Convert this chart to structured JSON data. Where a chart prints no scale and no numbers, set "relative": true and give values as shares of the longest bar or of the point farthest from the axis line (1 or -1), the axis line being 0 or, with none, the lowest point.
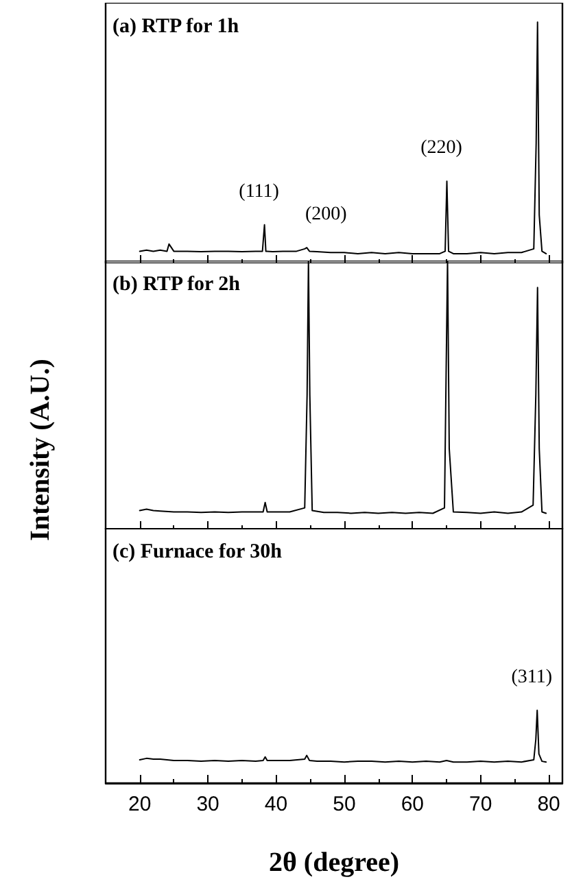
{
  "chart_data": [
    {
      "type": "line",
      "title": "(a) RTP for 1h",
      "relative": true,
      "tick_labels": false,
      "xlim": [
        15,
        82
      ],
      "xticks": [
        20,
        30,
        40,
        50,
        60,
        70,
        80
      ],
      "grid": false,
      "marker": "none",
      "line_style": "solid",
      "annotations": [
        {
          "text": "(111)",
          "x": 38.3,
          "y": 0.16
        },
        {
          "text": "(200)",
          "x": 44.5,
          "y": 0.065
        },
        {
          "text": "(220)",
          "x": 65.05,
          "y": 0.34
        }
      ],
      "series": [
        {
          "color": "#000000",
          "x": [
            20,
            21,
            22,
            23,
            24,
            24.3,
            25,
            27,
            29,
            31,
            33,
            35,
            37,
            38.0,
            38.3,
            38.5,
            38.7,
            39.5,
            41,
            43,
            44.2,
            44.5,
            44.9,
            46,
            48,
            50,
            52,
            54,
            56,
            58,
            60,
            62,
            64,
            64.8,
            65.05,
            65.3,
            66,
            68,
            70,
            72,
            74,
            76,
            77.8,
            78.15,
            78.35,
            78.6,
            79,
            79.6
          ],
          "values": [
            0.05,
            0.055,
            0.05,
            0.055,
            0.05,
            0.08,
            0.05,
            0.05,
            0.048,
            0.05,
            0.05,
            0.048,
            0.05,
            0.05,
            0.16,
            0.05,
            0.05,
            0.048,
            0.05,
            0.05,
            0.06,
            0.065,
            0.05,
            0.048,
            0.045,
            0.045,
            0.04,
            0.045,
            0.04,
            0.045,
            0.04,
            0.04,
            0.04,
            0.05,
            0.34,
            0.05,
            0.04,
            0.04,
            0.045,
            0.04,
            0.045,
            0.045,
            0.06,
            0.5,
            1,
            0.2,
            0.05,
            0.04
          ]
        }
      ]
    },
    {
      "type": "line",
      "title": "(b) RTP for 2h",
      "ylabel": "Intensity (A.U.)",
      "relative": true,
      "tick_labels": false,
      "xlim": [
        15,
        82
      ],
      "xticks": [
        20,
        30,
        40,
        50,
        60,
        70,
        80
      ],
      "grid": false,
      "marker": "none",
      "line_style": "solid",
      "series": [
        {
          "color": "#000000",
          "x": [
            20,
            21,
            22,
            23,
            25,
            27,
            29,
            31,
            33,
            35,
            37,
            38.1,
            38.4,
            38.7,
            40,
            42,
            44.2,
            44.55,
            44.75,
            44.95,
            45.3,
            47,
            49,
            51,
            53,
            55,
            57,
            59,
            61,
            63,
            64.7,
            64.95,
            65.15,
            65.4,
            66,
            68,
            70,
            72,
            74,
            76,
            77.7,
            78.1,
            78.35,
            78.6,
            79,
            79.6
          ],
          "values": [
            0.07,
            0.075,
            0.07,
            0.068,
            0.065,
            0.065,
            0.063,
            0.065,
            0.063,
            0.065,
            0.065,
            0.065,
            0.1,
            0.065,
            0.065,
            0.065,
            0.08,
            0.5,
            1,
            0.5,
            0.07,
            0.063,
            0.063,
            0.06,
            0.063,
            0.06,
            0.063,
            0.06,
            0.063,
            0.06,
            0.08,
            0.6,
            1,
            0.3,
            0.065,
            0.063,
            0.06,
            0.065,
            0.06,
            0.065,
            0.09,
            0.5,
            0.9,
            0.3,
            0.065,
            0.06
          ]
        }
      ]
    },
    {
      "type": "line",
      "title": "(c) Furnace for 30h",
      "xlabel": "2θ (degree)",
      "relative": true,
      "tick_labels": "x",
      "xlim": [
        15,
        82
      ],
      "xticks": [
        20,
        30,
        40,
        50,
        60,
        70,
        80
      ],
      "grid": false,
      "marker": "none",
      "line_style": "solid",
      "annotations": [
        {
          "text": "(311)",
          "x": 78.3,
          "y": 1
        }
      ],
      "series": [
        {
          "color": "#000000",
          "x": [
            20,
            21,
            22,
            23,
            25,
            27,
            29,
            31,
            33,
            35,
            37,
            38.1,
            38.4,
            38.7,
            40,
            42,
            44.2,
            44.5,
            44.9,
            46,
            48,
            50,
            52,
            54,
            56,
            58,
            60,
            62,
            64,
            65,
            66,
            68,
            70,
            72,
            74,
            76,
            77.8,
            78.1,
            78.3,
            78.55,
            79,
            79.6
          ],
          "values": [
            0.32,
            0.34,
            0.33,
            0.33,
            0.31,
            0.31,
            0.3,
            0.31,
            0.3,
            0.31,
            0.3,
            0.31,
            0.36,
            0.31,
            0.31,
            0.31,
            0.33,
            0.38,
            0.31,
            0.3,
            0.3,
            0.29,
            0.3,
            0.3,
            0.29,
            0.3,
            0.29,
            0.3,
            0.29,
            0.31,
            0.29,
            0.29,
            0.3,
            0.29,
            0.3,
            0.29,
            0.32,
            0.6,
            1,
            0.4,
            0.3,
            0.29
          ]
        }
      ]
    }
  ]
}
